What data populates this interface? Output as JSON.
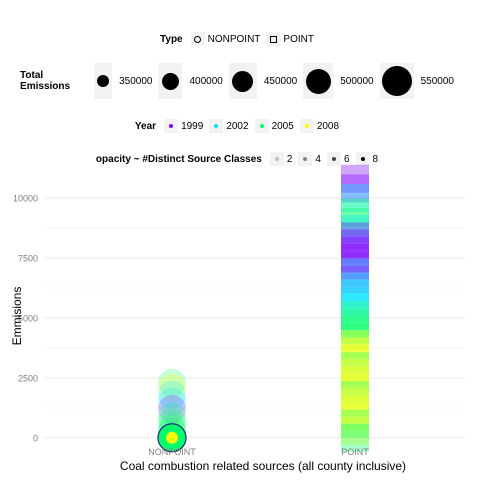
{
  "legends": {
    "type": {
      "title": "Type",
      "items": [
        "NONPOINT",
        "POINT"
      ]
    },
    "size": {
      "title_line1": "Total",
      "title_line2": "Emissions",
      "items": [
        "350000",
        "400000",
        "450000",
        "500000",
        "550000"
      ]
    },
    "year": {
      "title": "Year",
      "items": [
        "1999",
        "2002",
        "2005",
        "2008"
      ],
      "colors": [
        "#7a00ff",
        "#00e5ff",
        "#00ff66",
        "#ffff00"
      ]
    },
    "opacity": {
      "title": "opacity ~ #Distinct Source Classes",
      "items": [
        "2",
        "4",
        "6",
        "8"
      ]
    }
  },
  "chart_data": {
    "type": "scatter",
    "title": "",
    "xlabel": "Coal combustion related sources (all county inclusive)",
    "ylabel": "Emmisions",
    "categories": [
      "NONPOINT",
      "POINT"
    ],
    "y_ticks": [
      0,
      2500,
      5000,
      7500,
      10000
    ],
    "y_tick_labels": [
      "0",
      "2500",
      "5000",
      "7500",
      "10000"
    ],
    "ylim": [
      -300,
      11000
    ],
    "grid": true,
    "legend_position": "top",
    "series": [
      {
        "name": "NONPOINT",
        "points": [
          {
            "y": 2300,
            "year": "2005"
          },
          {
            "y": 2100,
            "year": "2008"
          },
          {
            "y": 1800,
            "year": "2002"
          },
          {
            "y": 1500,
            "year": "2002"
          },
          {
            "y": 1200,
            "year": "1999"
          },
          {
            "y": 900,
            "year": "2005"
          },
          {
            "y": 650,
            "year": "2005"
          },
          {
            "y": 450,
            "year": "2005"
          },
          {
            "y": 300,
            "year": "2005"
          },
          {
            "y": 150,
            "year": "2005"
          },
          {
            "y": 50,
            "year": "1999"
          },
          {
            "y": 20,
            "year": "2002"
          },
          {
            "y": 0,
            "year": "2005"
          },
          {
            "y": 0,
            "year": "2008"
          }
        ]
      },
      {
        "name": "POINT",
        "points": [
          {
            "y": 10800,
            "year": "1999"
          },
          {
            "y": 10400,
            "year": "1999"
          },
          {
            "y": 10000,
            "year": "2002"
          },
          {
            "y": 9400,
            "year": "2005"
          },
          {
            "y": 9000,
            "year": "2005"
          },
          {
            "y": 8700,
            "year": "2002"
          },
          {
            "y": 8400,
            "year": "1999"
          },
          {
            "y": 8100,
            "year": "1999"
          },
          {
            "y": 7800,
            "year": "1999"
          },
          {
            "y": 7500,
            "year": "1999"
          },
          {
            "y": 7200,
            "year": "1999"
          },
          {
            "y": 6900,
            "year": "2002"
          },
          {
            "y": 6600,
            "year": "1999"
          },
          {
            "y": 6300,
            "year": "2002"
          },
          {
            "y": 6000,
            "year": "2002"
          },
          {
            "y": 5700,
            "year": "2002"
          },
          {
            "y": 5400,
            "year": "2002"
          },
          {
            "y": 5100,
            "year": "2005"
          },
          {
            "y": 4800,
            "year": "2005"
          },
          {
            "y": 4500,
            "year": "2005"
          },
          {
            "y": 4200,
            "year": "2005"
          },
          {
            "y": 3900,
            "year": "2008"
          },
          {
            "y": 3600,
            "year": "2008"
          },
          {
            "y": 3300,
            "year": "2008"
          },
          {
            "y": 3000,
            "year": "2005"
          },
          {
            "y": 2700,
            "year": "2008"
          },
          {
            "y": 2400,
            "year": "2008"
          },
          {
            "y": 2100,
            "year": "2008"
          },
          {
            "y": 1800,
            "year": "2005"
          },
          {
            "y": 1500,
            "year": "2008"
          },
          {
            "y": 1200,
            "year": "2008"
          },
          {
            "y": 900,
            "year": "2008"
          },
          {
            "y": 600,
            "year": "2005"
          },
          {
            "y": 300,
            "year": "2008"
          },
          {
            "y": 0,
            "year": "2005"
          }
        ]
      }
    ]
  }
}
